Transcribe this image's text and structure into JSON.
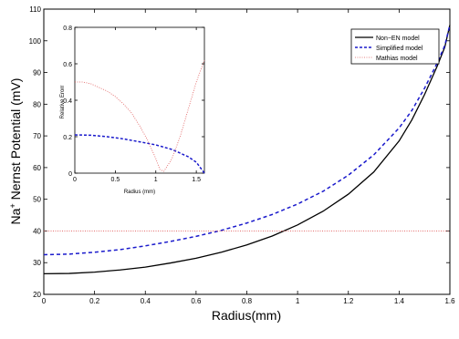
{
  "chart_data": [
    {
      "type": "line",
      "xlabel": "Radius(mm)",
      "ylabel": "Na",
      "ylabel_sup": "+",
      "ylabel_rest": " Nernst Potential (mV)",
      "xlim": [
        0,
        1.6
      ],
      "ylim": [
        20,
        110
      ],
      "xticks": [
        "0",
        "0.2",
        "0.4",
        "0.6",
        "0.8",
        "1",
        "1.2",
        "1.4",
        "1.6"
      ],
      "yticks": [
        "20",
        "30",
        "40",
        "50",
        "60",
        "70",
        "80",
        "90",
        "100",
        "110"
      ],
      "grid": false,
      "legend_position": "top-right",
      "series": [
        {
          "name": "Non−EN model",
          "color": "#000000",
          "style": "solid",
          "x": [
            0,
            0.1,
            0.2,
            0.3,
            0.4,
            0.5,
            0.6,
            0.7,
            0.8,
            0.9,
            1.0,
            1.1,
            1.2,
            1.3,
            1.4,
            1.45,
            1.5,
            1.55,
            1.58,
            1.6
          ],
          "y": [
            26.5,
            26.6,
            27.0,
            27.7,
            28.6,
            29.9,
            31.4,
            33.3,
            35.6,
            38.4,
            41.9,
            46.2,
            51.6,
            58.6,
            68.4,
            75.0,
            83.0,
            92.0,
            98.0,
            105.0
          ]
        },
        {
          "name": "Simplified model",
          "color": "#1a1acc",
          "style": "dashed",
          "x": [
            0,
            0.1,
            0.2,
            0.3,
            0.4,
            0.5,
            0.6,
            0.7,
            0.8,
            0.9,
            1.0,
            1.1,
            1.2,
            1.3,
            1.4,
            1.45,
            1.5,
            1.55,
            1.58,
            1.6
          ],
          "y": [
            32.5,
            32.7,
            33.3,
            34.1,
            35.3,
            36.7,
            38.3,
            40.2,
            42.5,
            45.2,
            48.5,
            52.5,
            57.6,
            64.0,
            72.5,
            78.0,
            85.0,
            93.0,
            98.5,
            105.0
          ]
        },
        {
          "name": "Mathias model",
          "color": "#e05a5a",
          "style": "dotted",
          "x": [
            0,
            1.6
          ],
          "y": [
            40,
            40
          ]
        }
      ]
    },
    {
      "type": "line",
      "xlabel": "Radius (mm)",
      "ylabel": "Relative Erorr",
      "xlim": [
        0,
        1.6
      ],
      "ylim": [
        0,
        0.8
      ],
      "xticks": [
        "0",
        "0.5",
        "1",
        "1.5"
      ],
      "yticks": [
        "0",
        "0.2",
        "0.4",
        "0.6",
        "0.8"
      ],
      "grid": false,
      "series": [
        {
          "color": "#1a1acc",
          "style": "dashed",
          "x": [
            0,
            0.2,
            0.4,
            0.6,
            0.8,
            1.0,
            1.2,
            1.4,
            1.5,
            1.55,
            1.6
          ],
          "y": [
            0.21,
            0.208,
            0.2,
            0.188,
            0.172,
            0.155,
            0.13,
            0.09,
            0.06,
            0.03,
            0.0
          ]
        },
        {
          "color": "#e05a5a",
          "style": "dotted",
          "x": [
            0,
            0.1,
            0.2,
            0.3,
            0.4,
            0.5,
            0.6,
            0.7,
            0.8,
            0.9,
            1.0,
            1.05,
            1.1,
            1.2,
            1.3,
            1.4,
            1.5,
            1.6
          ],
          "y": [
            0.5,
            0.5,
            0.49,
            0.47,
            0.45,
            0.42,
            0.38,
            0.33,
            0.26,
            0.18,
            0.08,
            0.02,
            0.01,
            0.08,
            0.2,
            0.35,
            0.5,
            0.62
          ]
        }
      ]
    }
  ]
}
